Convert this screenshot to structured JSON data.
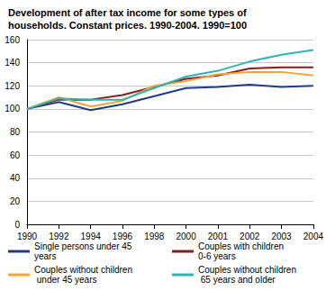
{
  "chart_data": {
    "type": "line",
    "title": "Development of after tax income for some types of households. Constant prices. 1990-2004. 1990=100",
    "categories": [
      "1990",
      "1992",
      "1994",
      "1996",
      "1998",
      "2000",
      "2001",
      "2002",
      "2003",
      "2004"
    ],
    "series": [
      {
        "name": "Single persons under 45 years",
        "color": "#1f3a8a",
        "values": [
          100,
          106,
          99,
          104,
          111,
          118,
          119,
          121,
          119,
          120
        ]
      },
      {
        "name": "Couples with children 0-6 years",
        "color": "#8b1c1c",
        "values": [
          100,
          108,
          108,
          112,
          119,
          126,
          129,
          135,
          136,
          136
        ]
      },
      {
        "name": "Couples without children under 45 years",
        "color": "#f2a33a",
        "values": [
          100,
          110,
          102,
          107,
          120,
          124,
          130,
          132,
          132,
          129
        ]
      },
      {
        "name": "Couples without children 65 years and older",
        "color": "#2fb3b3",
        "values": [
          100,
          109,
          108,
          108,
          118,
          128,
          133,
          141,
          147,
          151
        ]
      }
    ],
    "ylim": [
      0,
      160
    ],
    "yticks": [
      0,
      20,
      40,
      60,
      80,
      100,
      120,
      140,
      160
    ],
    "grid": true,
    "legend": "bottom"
  }
}
